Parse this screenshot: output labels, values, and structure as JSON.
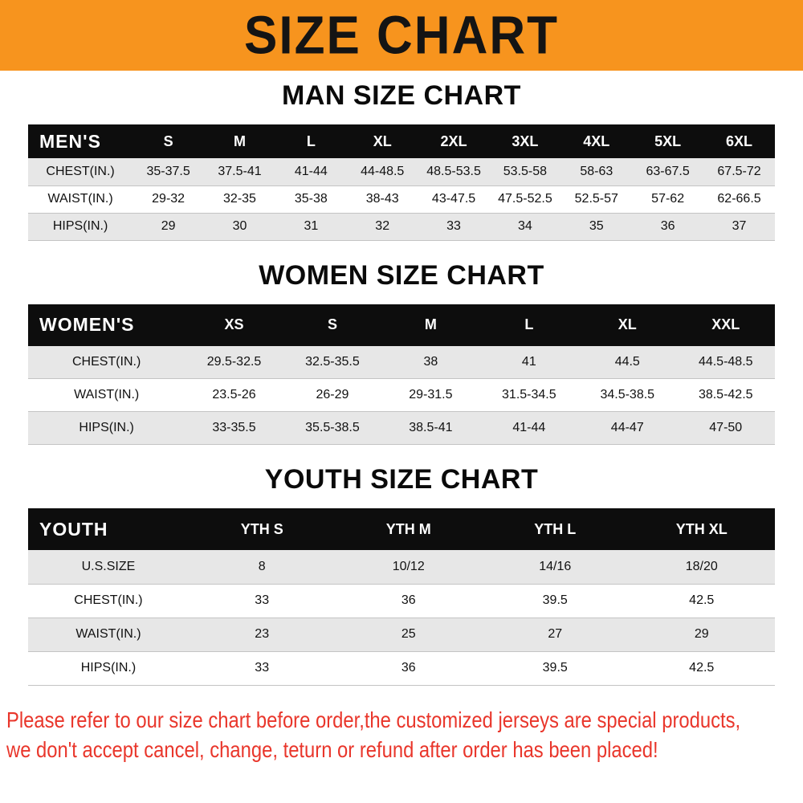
{
  "banner": {
    "title": "SIZE CHART",
    "bg": "#f7941e"
  },
  "sections": [
    {
      "id": "man",
      "title": "MAN SIZE CHART",
      "table": {
        "header_label": "MEN'S",
        "columns": [
          "S",
          "M",
          "L",
          "XL",
          "2XL",
          "3XL",
          "4XL",
          "5XL",
          "6XL"
        ],
        "rows": [
          {
            "label": "CHEST(IN.)",
            "values": [
              "35-37.5",
              "37.5-41",
              "41-44",
              "44-48.5",
              "48.5-53.5",
              "53.5-58",
              "58-63",
              "63-67.5",
              "67.5-72"
            ]
          },
          {
            "label": "WAIST(IN.)",
            "values": [
              "29-32",
              "32-35",
              "35-38",
              "38-43",
              "43-47.5",
              "47.5-52.5",
              "52.5-57",
              "57-62",
              "62-66.5"
            ]
          },
          {
            "label": "HIPS(IN.)",
            "values": [
              "29",
              "30",
              "31",
              "32",
              "33",
              "34",
              "35",
              "36",
              "37"
            ]
          }
        ]
      }
    },
    {
      "id": "women",
      "title": "WOMEN SIZE CHART",
      "table": {
        "header_label": "WOMEN'S",
        "columns": [
          "XS",
          "S",
          "M",
          "L",
          "XL",
          "XXL"
        ],
        "rows": [
          {
            "label": "CHEST(IN.)",
            "values": [
              "29.5-32.5",
              "32.5-35.5",
              "38",
              "41",
              "44.5",
              "44.5-48.5"
            ]
          },
          {
            "label": "WAIST(IN.)",
            "values": [
              "23.5-26",
              "26-29",
              "29-31.5",
              "31.5-34.5",
              "34.5-38.5",
              "38.5-42.5"
            ]
          },
          {
            "label": "HIPS(IN.)",
            "values": [
              "33-35.5",
              "35.5-38.5",
              "38.5-41",
              "41-44",
              "44-47",
              "47-50"
            ]
          }
        ]
      }
    },
    {
      "id": "youth",
      "title": "YOUTH SIZE CHART",
      "table": {
        "header_label": "YOUTH",
        "columns": [
          "YTH S",
          "YTH M",
          "YTH L",
          "YTH XL"
        ],
        "rows": [
          {
            "label": "U.S.SIZE",
            "values": [
              "8",
              "10/12",
              "14/16",
              "18/20"
            ]
          },
          {
            "label": "CHEST(IN.)",
            "values": [
              "33",
              "36",
              "39.5",
              "42.5"
            ]
          },
          {
            "label": "WAIST(IN.)",
            "values": [
              "23",
              "25",
              "27",
              "29"
            ]
          },
          {
            "label": "HIPS(IN.)",
            "values": [
              "33",
              "36",
              "39.5",
              "42.5"
            ]
          }
        ]
      }
    }
  ],
  "footer": {
    "color": "#e9362b",
    "line1": "Please refer to our size chart before order,the customized jerseys are special products,",
    "line2": "we don't accept cancel, change, teturn or refund after order has been placed!"
  }
}
